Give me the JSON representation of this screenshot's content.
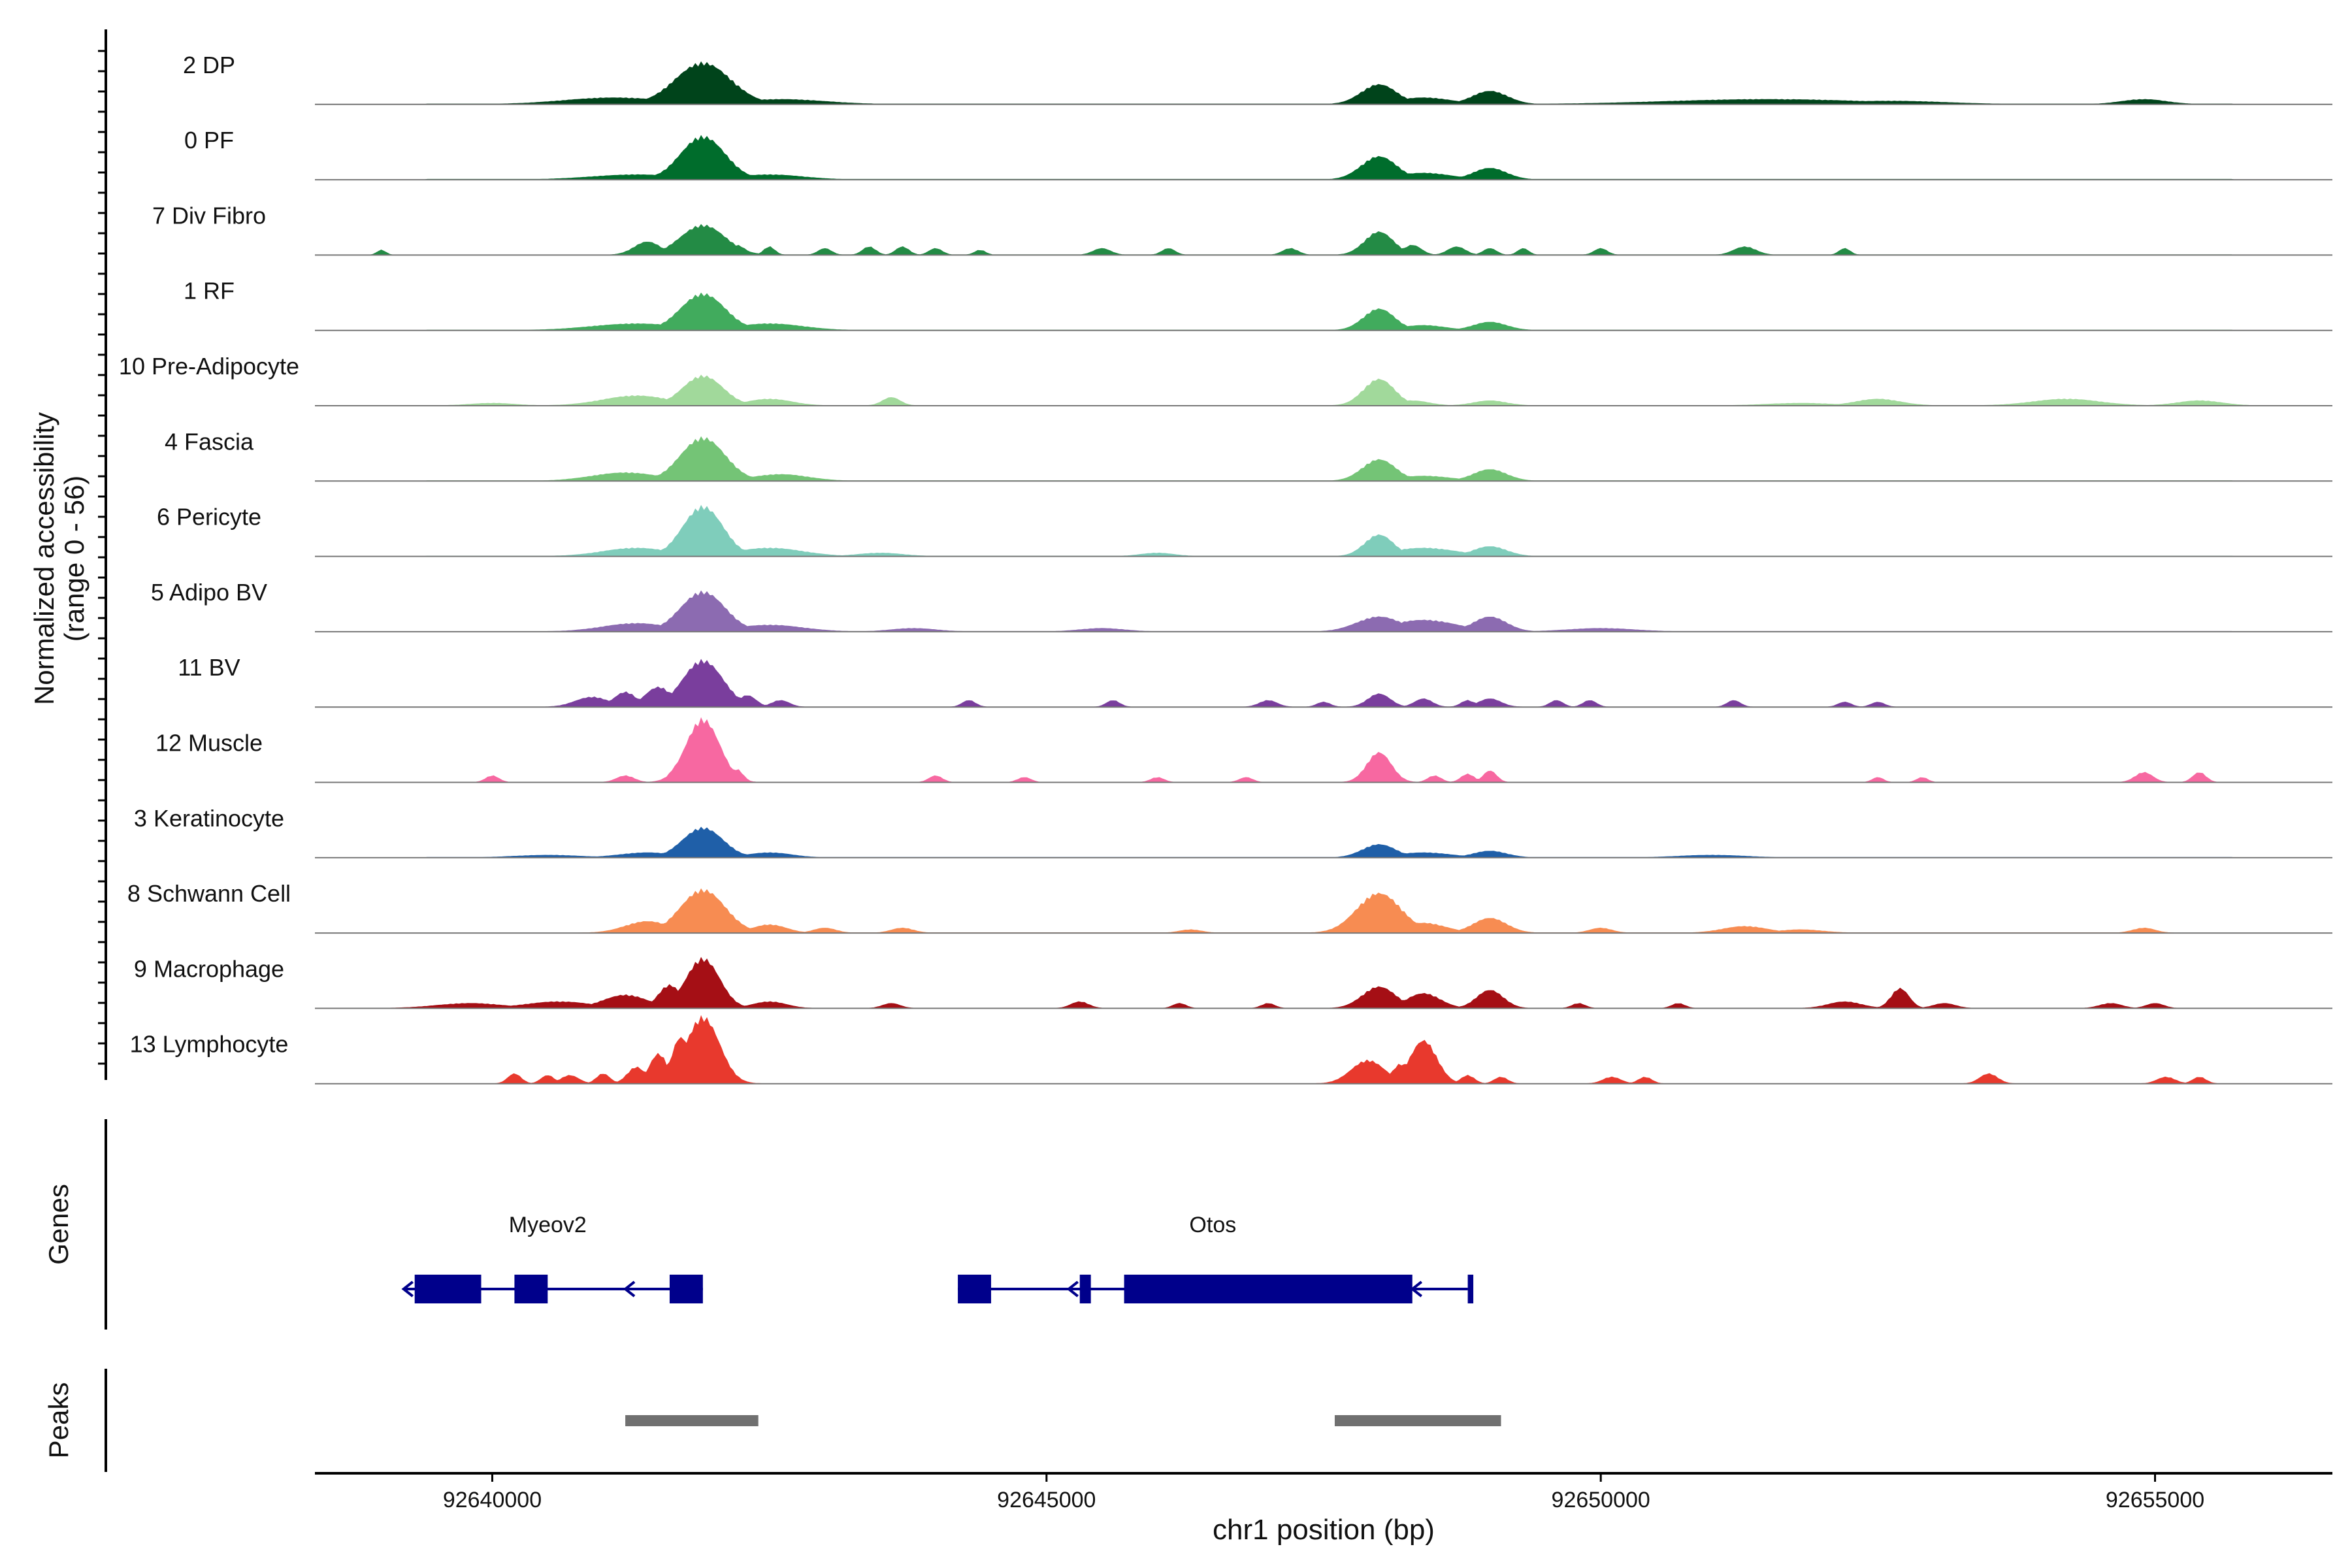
{
  "chart_data": {
    "type": "area",
    "title": "",
    "ylabel": [
      "Normalized accessibility",
      "(range 0 - 56)"
    ],
    "xlabel": "chr1 position (bp)",
    "xlim": [
      92638400,
      92656600
    ],
    "ylim": [
      0,
      56
    ],
    "xticks": [
      92640000,
      92645000,
      92650000,
      92655000
    ],
    "xtick_labels": [
      "92640000",
      "92645000",
      "92650000",
      "92655000"
    ],
    "tracks": [
      {
        "name": "2 DP",
        "color": "#00441b",
        "segments": [
          [
            92639400,
            92655700,
            0.25
          ]
        ],
        "peaks": [
          [
            92641900,
            25,
            250
          ],
          [
            92641100,
            4,
            450
          ],
          [
            92642600,
            3,
            400
          ],
          [
            92648000,
            12,
            160
          ],
          [
            92648400,
            4,
            250
          ],
          [
            92649000,
            8,
            160
          ],
          [
            92651500,
            3,
            900
          ],
          [
            92652600,
            2,
            500
          ],
          [
            92654900,
            3,
            200
          ]
        ]
      },
      {
        "name": "0 PF",
        "color": "#006d2c",
        "segments": [
          [
            92639400,
            92655700,
            0.25
          ]
        ],
        "peaks": [
          [
            92641900,
            26,
            200
          ],
          [
            92641300,
            3,
            400
          ],
          [
            92642500,
            3,
            300
          ],
          [
            92648000,
            14,
            160
          ],
          [
            92648400,
            4,
            250
          ],
          [
            92649000,
            7,
            150
          ]
        ]
      },
      {
        "name": "7 Div Fibro",
        "color": "#238b45",
        "segments": [
          [
            92641500,
            92655700,
            0.2
          ]
        ],
        "peaks": [
          [
            92641900,
            18,
            200
          ],
          [
            92641400,
            8,
            120
          ],
          [
            92642200,
            6,
            80
          ],
          [
            92642500,
            5,
            50
          ],
          [
            92643000,
            4,
            60
          ],
          [
            92643400,
            5,
            60
          ],
          [
            92643700,
            5,
            60
          ],
          [
            92644000,
            4,
            60
          ],
          [
            92644400,
            3,
            50
          ],
          [
            92645500,
            4,
            80
          ],
          [
            92646100,
            4,
            60
          ],
          [
            92647200,
            4,
            70
          ],
          [
            92648000,
            14,
            130
          ],
          [
            92648300,
            6,
            80
          ],
          [
            92648700,
            5,
            80
          ],
          [
            92649000,
            4,
            60
          ],
          [
            92649300,
            4,
            50
          ],
          [
            92650000,
            4,
            60
          ],
          [
            92651300,
            5,
            100
          ],
          [
            92652200,
            4,
            50
          ],
          [
            92639000,
            3,
            40
          ]
        ]
      },
      {
        "name": "1 RF",
        "color": "#41ab5d",
        "segments": [
          [
            92639400,
            92655700,
            0.2
          ]
        ],
        "peaks": [
          [
            92641900,
            22,
            200
          ],
          [
            92641300,
            4,
            400
          ],
          [
            92642500,
            4,
            300
          ],
          [
            92648000,
            13,
            140
          ],
          [
            92648400,
            3,
            200
          ],
          [
            92649000,
            5,
            150
          ]
        ]
      },
      {
        "name": "10 Pre-Adipocyte",
        "color": "#a1d99b",
        "segments": [
          [
            92639800,
            92655700,
            0.2
          ]
        ],
        "peaks": [
          [
            92641900,
            18,
            180
          ],
          [
            92641300,
            6,
            300
          ],
          [
            92642500,
            4,
            200
          ],
          [
            92643600,
            5,
            80
          ],
          [
            92648000,
            16,
            140
          ],
          [
            92648300,
            3,
            150
          ],
          [
            92649000,
            3,
            150
          ],
          [
            92640000,
            1.5,
            200
          ],
          [
            92652500,
            4,
            200
          ],
          [
            92654200,
            4,
            300
          ],
          [
            92655400,
            3,
            200
          ],
          [
            92651800,
            1.5,
            300
          ]
        ]
      },
      {
        "name": "4 Fascia",
        "color": "#74c476",
        "segments": [
          [
            92639400,
            92655700,
            0.2
          ]
        ],
        "peaks": [
          [
            92641900,
            26,
            200
          ],
          [
            92641200,
            5,
            300
          ],
          [
            92642600,
            4,
            250
          ],
          [
            92648000,
            13,
            150
          ],
          [
            92648400,
            3,
            250
          ],
          [
            92649000,
            7,
            150
          ]
        ]
      },
      {
        "name": "6 Pericyte",
        "color": "#7fcdbb",
        "segments": [
          [
            92639400,
            92655700,
            0.2
          ]
        ],
        "peaks": [
          [
            92641900,
            30,
            180
          ],
          [
            92641300,
            5,
            300
          ],
          [
            92642500,
            5,
            300
          ],
          [
            92648000,
            13,
            130
          ],
          [
            92648400,
            5,
            300
          ],
          [
            92649000,
            6,
            150
          ],
          [
            92643500,
            2,
            200
          ],
          [
            92646000,
            2,
            150
          ]
        ]
      },
      {
        "name": "5 Adipo BV",
        "color": "#8c6bb1",
        "segments": [
          [
            92640500,
            92655700,
            0.2
          ]
        ],
        "peaks": [
          [
            92641900,
            24,
            200
          ],
          [
            92641300,
            5,
            300
          ],
          [
            92642500,
            4,
            300
          ],
          [
            92648000,
            9,
            200
          ],
          [
            92648400,
            7,
            300
          ],
          [
            92649000,
            9,
            150
          ],
          [
            92643800,
            2,
            200
          ],
          [
            92645500,
            2,
            200
          ],
          [
            92650000,
            2,
            300
          ]
        ]
      },
      {
        "name": "11 BV",
        "color": "#7a3e9d",
        "segments": [],
        "peaks": [
          [
            92641900,
            28,
            180
          ],
          [
            92641500,
            12,
            120
          ],
          [
            92641200,
            9,
            100
          ],
          [
            92640900,
            6,
            150
          ],
          [
            92642300,
            7,
            80
          ],
          [
            92642600,
            4,
            80
          ],
          [
            92644300,
            4,
            60
          ],
          [
            92645600,
            4,
            60
          ],
          [
            92647000,
            4,
            80
          ],
          [
            92647500,
            3,
            60
          ],
          [
            92648000,
            8,
            100
          ],
          [
            92648400,
            5,
            80
          ],
          [
            92648800,
            4,
            60
          ],
          [
            92649000,
            5,
            100
          ],
          [
            92649600,
            4,
            60
          ],
          [
            92649900,
            4,
            60
          ],
          [
            92651200,
            4,
            60
          ],
          [
            92652200,
            3,
            60
          ],
          [
            92652500,
            3,
            60
          ]
        ]
      },
      {
        "name": "12 Muscle",
        "color": "#f768a1",
        "segments": [],
        "peaks": [
          [
            92641900,
            38,
            150
          ],
          [
            92641700,
            12,
            80
          ],
          [
            92642200,
            8,
            60
          ],
          [
            92641200,
            4,
            80
          ],
          [
            92640000,
            4,
            60
          ],
          [
            92644000,
            4,
            60
          ],
          [
            92644800,
            3,
            60
          ],
          [
            92646000,
            3,
            60
          ],
          [
            92646800,
            3,
            60
          ],
          [
            92648000,
            18,
            110
          ],
          [
            92648500,
            4,
            60
          ],
          [
            92648800,
            5,
            60
          ],
          [
            92649000,
            7,
            60
          ],
          [
            92652500,
            3,
            50
          ],
          [
            92652900,
            3,
            50
          ],
          [
            92654900,
            6,
            80
          ],
          [
            92655400,
            6,
            60
          ]
        ]
      },
      {
        "name": "3 Keratinocyte",
        "color": "#1f5fa8",
        "segments": [
          [
            92639400,
            92655700,
            0.2
          ]
        ],
        "peaks": [
          [
            92641900,
            18,
            180
          ],
          [
            92641400,
            3,
            250
          ],
          [
            92642500,
            3,
            200
          ],
          [
            92648000,
            8,
            150
          ],
          [
            92648400,
            3,
            250
          ],
          [
            92649000,
            4,
            150
          ],
          [
            92640500,
            1.5,
            300
          ],
          [
            92651000,
            1.5,
            300
          ]
        ]
      },
      {
        "name": "8 Schwann Cell",
        "color": "#f78c52",
        "segments": [
          [
            92641000,
            92655000,
            0.2
          ]
        ],
        "peaks": [
          [
            92641900,
            26,
            200
          ],
          [
            92641400,
            7,
            200
          ],
          [
            92642500,
            5,
            150
          ],
          [
            92643000,
            3,
            100
          ],
          [
            92643700,
            3,
            100
          ],
          [
            92648000,
            24,
            200
          ],
          [
            92648400,
            6,
            200
          ],
          [
            92649000,
            9,
            150
          ],
          [
            92650000,
            3,
            100
          ],
          [
            92651300,
            4,
            200
          ],
          [
            92651800,
            2,
            200
          ],
          [
            92654900,
            3,
            100
          ],
          [
            92646300,
            2,
            100
          ]
        ]
      },
      {
        "name": "9 Macrophage",
        "color": "#a50f15",
        "segments": [],
        "peaks": [
          [
            92641900,
            30,
            150
          ],
          [
            92641600,
            14,
            100
          ],
          [
            92641200,
            8,
            200
          ],
          [
            92640600,
            4,
            300
          ],
          [
            92639800,
            3,
            300
          ],
          [
            92642500,
            4,
            150
          ],
          [
            92643600,
            3,
            80
          ],
          [
            92645300,
            4,
            80
          ],
          [
            92646200,
            3,
            60
          ],
          [
            92647000,
            3,
            60
          ],
          [
            92648000,
            13,
            150
          ],
          [
            92648400,
            9,
            150
          ],
          [
            92649000,
            11,
            120
          ],
          [
            92649800,
            3,
            60
          ],
          [
            92650700,
            3,
            60
          ],
          [
            92652200,
            4,
            150
          ],
          [
            92652700,
            12,
            80
          ],
          [
            92653100,
            3,
            100
          ],
          [
            92654600,
            3,
            100
          ],
          [
            92655000,
            3,
            80
          ]
        ]
      },
      {
        "name": "13 Lymphocyte",
        "color": "#e8392d",
        "segments": [],
        "peaks": [
          [
            92641900,
            40,
            150
          ],
          [
            92641700,
            28,
            80
          ],
          [
            92641500,
            18,
            80
          ],
          [
            92641300,
            10,
            80
          ],
          [
            92640200,
            6,
            60
          ],
          [
            92640500,
            5,
            60
          ],
          [
            92640700,
            5,
            80
          ],
          [
            92641000,
            6,
            60
          ],
          [
            92647900,
            14,
            150
          ],
          [
            92648400,
            26,
            120
          ],
          [
            92648200,
            12,
            80
          ],
          [
            92648800,
            5,
            60
          ],
          [
            92649100,
            4,
            60
          ],
          [
            92650100,
            4,
            80
          ],
          [
            92650400,
            4,
            60
          ],
          [
            92653500,
            6,
            80
          ],
          [
            92655100,
            4,
            80
          ],
          [
            92655400,
            4,
            60
          ]
        ]
      }
    ],
    "genes": [
      {
        "name": "Myeov2",
        "label_x": 92640500,
        "intron": [
          92639200,
          92641900
        ],
        "exons": [
          [
            92639300,
            92639900
          ],
          [
            92640200,
            92640500
          ],
          [
            92641600,
            92641900
          ]
        ],
        "arrows": [
          92639200,
          92641200
        ]
      },
      {
        "name": "Otos",
        "label_x": 92646500,
        "intron": [
          92644200,
          92648800
        ],
        "exons": [
          [
            92644200,
            92644500
          ],
          [
            92645300,
            92645400
          ],
          [
            92645700,
            92648300
          ],
          [
            92648800,
            92648850
          ]
        ],
        "arrows": [
          92645200,
          92648300
        ]
      }
    ],
    "peaks": [
      [
        92641200,
        92642400
      ],
      [
        92647600,
        92649100
      ]
    ],
    "gene_axis_label": "Genes",
    "peak_axis_label": "Peaks"
  }
}
